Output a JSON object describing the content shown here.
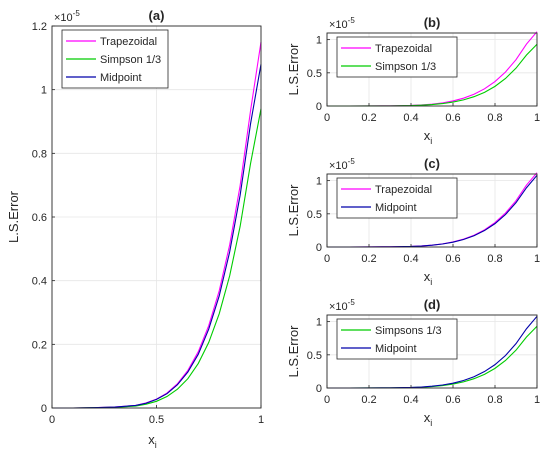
{
  "chart_data": [
    {
      "panel": "a",
      "type": "line",
      "title": "(a)",
      "xlabel": "x",
      "xlabel_sub": "i",
      "ylabel": "L.S.Error",
      "y_exponent_base": "×10",
      "y_exponent": "-5",
      "xlim": [
        0,
        1
      ],
      "ylim": [
        0,
        1.2
      ],
      "xticks": [
        0,
        0.5,
        1
      ],
      "xticklabels": [
        "0",
        "0.5",
        "1"
      ],
      "yticks": [
        0,
        0.2,
        0.4,
        0.6,
        0.8,
        1,
        1.2
      ],
      "yticklabels": [
        "0",
        "0.2",
        "0.4",
        "0.6",
        "0.8",
        "1",
        "1.2"
      ],
      "grid": true,
      "legend_position": "top-left",
      "x": [
        0,
        0.1,
        0.2,
        0.3,
        0.4,
        0.45,
        0.5,
        0.55,
        0.6,
        0.65,
        0.7,
        0.75,
        0.8,
        0.85,
        0.9,
        0.95,
        1.0
      ],
      "series": [
        {
          "name": "Trapezoidal",
          "color": "#ff00ff",
          "values": [
            0,
            0,
            0.001,
            0.003,
            0.008,
            0.016,
            0.028,
            0.047,
            0.076,
            0.118,
            0.177,
            0.259,
            0.368,
            0.512,
            0.698,
            0.934,
            1.15
          ]
        },
        {
          "name": "Simpson 1/3",
          "color": "#00cc00",
          "values": [
            0,
            0,
            0.001,
            0.002,
            0.006,
            0.012,
            0.021,
            0.036,
            0.059,
            0.092,
            0.14,
            0.206,
            0.296,
            0.415,
            0.57,
            0.768,
            0.94
          ]
        },
        {
          "name": "Midpoint",
          "color": "#0000aa",
          "values": [
            0,
            0,
            0.001,
            0.003,
            0.008,
            0.015,
            0.027,
            0.045,
            0.073,
            0.113,
            0.169,
            0.248,
            0.352,
            0.49,
            0.668,
            0.893,
            1.08
          ]
        }
      ]
    },
    {
      "panel": "b",
      "type": "line",
      "title": "(b)",
      "xlabel": "x",
      "xlabel_sub": "i",
      "ylabel": "L.S.Error",
      "y_exponent_base": "×10",
      "y_exponent": "-5",
      "xlim": [
        0,
        1
      ],
      "ylim": [
        0,
        1.1
      ],
      "xticks": [
        0,
        0.2,
        0.4,
        0.6,
        0.8,
        1
      ],
      "xticklabels": [
        "0",
        "0.2",
        "0.4",
        "0.6",
        "0.8",
        "1"
      ],
      "yticks": [
        0,
        0.5,
        1
      ],
      "yticklabels": [
        "0",
        "0.5",
        "1"
      ],
      "grid": true,
      "legend_position": "top-left",
      "x": [
        0,
        0.1,
        0.2,
        0.3,
        0.4,
        0.45,
        0.5,
        0.55,
        0.6,
        0.65,
        0.7,
        0.75,
        0.8,
        0.85,
        0.9,
        0.95,
        1.0
      ],
      "series": [
        {
          "name": "Trapezoidal",
          "color": "#ff00ff",
          "values": [
            0,
            0,
            0.001,
            0.003,
            0.008,
            0.016,
            0.028,
            0.047,
            0.076,
            0.118,
            0.177,
            0.259,
            0.368,
            0.512,
            0.698,
            0.934,
            1.12
          ]
        },
        {
          "name": "Simpson 1/3",
          "color": "#00cc00",
          "values": [
            0,
            0,
            0.001,
            0.002,
            0.006,
            0.012,
            0.021,
            0.036,
            0.059,
            0.092,
            0.14,
            0.206,
            0.296,
            0.415,
            0.57,
            0.768,
            0.93
          ]
        }
      ]
    },
    {
      "panel": "c",
      "type": "line",
      "title": "(c)",
      "xlabel": "x",
      "xlabel_sub": "i",
      "ylabel": "L.S.Error",
      "y_exponent_base": "×10",
      "y_exponent": "-5",
      "xlim": [
        0,
        1
      ],
      "ylim": [
        0,
        1.1
      ],
      "xticks": [
        0,
        0.2,
        0.4,
        0.6,
        0.8,
        1
      ],
      "xticklabels": [
        "0",
        "0.2",
        "0.4",
        "0.6",
        "0.8",
        "1"
      ],
      "yticks": [
        0,
        0.5,
        1
      ],
      "yticklabels": [
        "0",
        "0.5",
        "1"
      ],
      "grid": true,
      "legend_position": "top-left",
      "x": [
        0,
        0.1,
        0.2,
        0.3,
        0.4,
        0.45,
        0.5,
        0.55,
        0.6,
        0.65,
        0.7,
        0.75,
        0.8,
        0.85,
        0.9,
        0.95,
        1.0
      ],
      "series": [
        {
          "name": "Trapezoidal",
          "color": "#ff00ff",
          "values": [
            0,
            0,
            0.001,
            0.003,
            0.008,
            0.016,
            0.028,
            0.047,
            0.076,
            0.118,
            0.177,
            0.259,
            0.368,
            0.512,
            0.698,
            0.934,
            1.12
          ]
        },
        {
          "name": "Midpoint",
          "color": "#0000aa",
          "values": [
            0,
            0,
            0.001,
            0.003,
            0.008,
            0.015,
            0.027,
            0.045,
            0.073,
            0.113,
            0.169,
            0.248,
            0.352,
            0.49,
            0.668,
            0.893,
            1.08
          ]
        }
      ]
    },
    {
      "panel": "d",
      "type": "line",
      "title": "(d)",
      "xlabel": "x",
      "xlabel_sub": "i",
      "ylabel": "L.S.Error",
      "y_exponent_base": "×10",
      "y_exponent": "-5",
      "xlim": [
        0,
        1
      ],
      "ylim": [
        0,
        1.1
      ],
      "xticks": [
        0,
        0.2,
        0.4,
        0.6,
        0.8,
        1
      ],
      "xticklabels": [
        "0",
        "0.2",
        "0.4",
        "0.6",
        "0.8",
        "1"
      ],
      "yticks": [
        0,
        0.5,
        1
      ],
      "yticklabels": [
        "0",
        "0.5",
        "1"
      ],
      "grid": true,
      "legend_position": "top-left",
      "x": [
        0,
        0.1,
        0.2,
        0.3,
        0.4,
        0.45,
        0.5,
        0.55,
        0.6,
        0.65,
        0.7,
        0.75,
        0.8,
        0.85,
        0.9,
        0.95,
        1.0
      ],
      "series": [
        {
          "name": "Simpsons 1/3",
          "color": "#00cc00",
          "values": [
            0,
            0,
            0.001,
            0.002,
            0.006,
            0.012,
            0.021,
            0.036,
            0.059,
            0.092,
            0.14,
            0.206,
            0.296,
            0.415,
            0.57,
            0.768,
            0.93
          ]
        },
        {
          "name": "Midpoint",
          "color": "#0000aa",
          "values": [
            0,
            0,
            0.001,
            0.003,
            0.008,
            0.015,
            0.027,
            0.045,
            0.073,
            0.113,
            0.169,
            0.248,
            0.352,
            0.49,
            0.668,
            0.893,
            1.08
          ]
        }
      ]
    }
  ]
}
